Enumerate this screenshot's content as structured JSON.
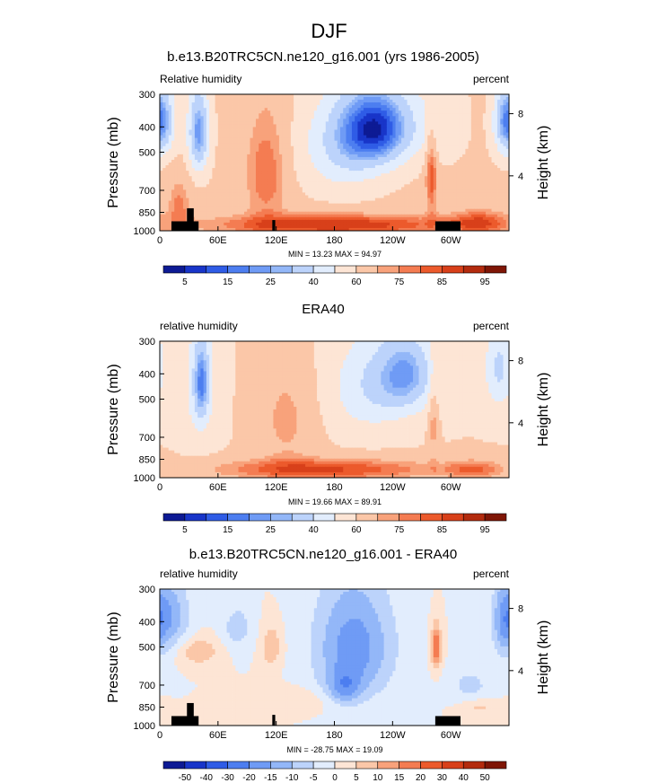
{
  "figure": {
    "season": "DJF"
  },
  "colors": {
    "blues": [
      "#0d1a94",
      "#1835c9",
      "#2f5ce6",
      "#4d7ef0",
      "#6f9bf5",
      "#93b7f8",
      "#bcd3fb",
      "#e2edfd"
    ],
    "reds": [
      "#fde5d5",
      "#fbc7a8",
      "#f8a27b",
      "#f47c52",
      "#ec5a2c",
      "#d8401a",
      "#b32b0e",
      "#7f1606"
    ],
    "land": "#000000"
  },
  "chart_data": [
    {
      "type": "heatmap",
      "title": "b.e13.B20TRC5CN.ne120_g16.001 (yrs 1986-2005)",
      "left_label": "Relative humidity",
      "right_label": "percent",
      "ylabel": "Pressure (mb)",
      "ylabel_right": "Height (km)",
      "y_ticks": [
        "300",
        "400",
        "500",
        "700",
        "850",
        "1000"
      ],
      "y_tick_values": [
        300,
        400,
        500,
        700,
        850,
        1000
      ],
      "right_ticks": [
        "8",
        "4"
      ],
      "right_tick_values": [
        356,
        616
      ],
      "x_ticks": [
        "0",
        "60E",
        "120E",
        "180",
        "120W",
        "60W"
      ],
      "x_tick_values": [
        0,
        60,
        120,
        180,
        240,
        300
      ],
      "xlim": [
        0,
        360
      ],
      "ylim": [
        1000,
        300
      ],
      "stats": "MIN =  13.23   MAX =  94.97",
      "colorbar_labels": [
        "5",
        "15",
        "25",
        "40",
        "60",
        "75",
        "85",
        "95"
      ],
      "colorbar_levels": [
        5,
        10,
        15,
        20,
        25,
        30,
        40,
        50,
        60,
        70,
        75,
        80,
        85,
        90,
        95
      ],
      "field": {
        "kind": "abs",
        "base": 62,
        "features": [
          {
            "lon": 225,
            "p": 400,
            "dlon": 38,
            "dp": 140,
            "amp": -48
          },
          {
            "lon": 190,
            "p": 480,
            "dlon": 45,
            "dp": 210,
            "amp": -22
          },
          {
            "lon": 40,
            "p": 420,
            "dlon": 11,
            "dp": 160,
            "amp": -40
          },
          {
            "lon": 355,
            "p": 380,
            "dlon": 12,
            "dp": 120,
            "amp": -30
          },
          {
            "lon": 5,
            "p": 380,
            "dlon": 12,
            "dp": 120,
            "amp": -25
          },
          {
            "lon": 110,
            "p": 600,
            "dlon": 22,
            "dp": 300,
            "amp": 18
          },
          {
            "lon": 280,
            "p": 600,
            "dlon": 6,
            "dp": 250,
            "amp": 22
          },
          {
            "lon": 290,
            "p": 380,
            "dlon": 25,
            "dp": 140,
            "amp": -10
          },
          {
            "lon": 180,
            "p": 950,
            "dlon": 130,
            "dp": 90,
            "amp": 28
          },
          {
            "lon": 330,
            "p": 930,
            "dlon": 30,
            "dp": 100,
            "amp": 20
          },
          {
            "lon": 20,
            "p": 800,
            "dlon": 12,
            "dp": 180,
            "amp": 15
          }
        ]
      },
      "land": [
        {
          "lon0": 12,
          "lon1": 40,
          "p": 920
        },
        {
          "lon0": 28,
          "lon1": 35,
          "p": 820
        },
        {
          "lon0": 116,
          "lon1": 119,
          "p": 910
        },
        {
          "lon0": 284,
          "lon1": 310,
          "p": 920
        }
      ]
    },
    {
      "type": "heatmap",
      "title": "ERA40",
      "left_label": "relative humidity",
      "right_label": "percent",
      "ylabel": "Pressure (mb)",
      "ylabel_right": "Height (km)",
      "y_ticks": [
        "300",
        "400",
        "500",
        "700",
        "850",
        "1000"
      ],
      "y_tick_values": [
        300,
        400,
        500,
        700,
        850,
        1000
      ],
      "right_ticks": [
        "8",
        "4"
      ],
      "right_tick_values": [
        356,
        616
      ],
      "x_ticks": [
        "0",
        "60E",
        "120E",
        "180",
        "120W",
        "60W"
      ],
      "x_tick_values": [
        0,
        60,
        120,
        180,
        240,
        300
      ],
      "xlim": [
        0,
        360
      ],
      "ylim": [
        1000,
        300
      ],
      "stats": "MIN =  19.66   MAX =  89.91",
      "colorbar_labels": [
        "5",
        "15",
        "25",
        "40",
        "60",
        "75",
        "85",
        "95"
      ],
      "colorbar_levels": [
        5,
        10,
        15,
        20,
        25,
        30,
        40,
        50,
        60,
        70,
        75,
        80,
        85,
        90,
        95
      ],
      "field": {
        "kind": "abs",
        "base": 60,
        "features": [
          {
            "lon": 255,
            "p": 400,
            "dlon": 30,
            "dp": 140,
            "amp": -32
          },
          {
            "lon": 215,
            "p": 450,
            "dlon": 40,
            "dp": 200,
            "amp": -18
          },
          {
            "lon": 43,
            "p": 430,
            "dlon": 8,
            "dp": 150,
            "amp": -32
          },
          {
            "lon": 40,
            "p": 450,
            "dlon": 20,
            "dp": 300,
            "amp": -12
          },
          {
            "lon": 350,
            "p": 380,
            "dlon": 15,
            "dp": 150,
            "amp": -22
          },
          {
            "lon": 130,
            "p": 600,
            "dlon": 30,
            "dp": 300,
            "amp": 12
          },
          {
            "lon": 282,
            "p": 600,
            "dlon": 5,
            "dp": 250,
            "amp": 14
          },
          {
            "lon": 170,
            "p": 930,
            "dlon": 120,
            "dp": 90,
            "amp": 26
          },
          {
            "lon": 325,
            "p": 930,
            "dlon": 30,
            "dp": 80,
            "amp": 18
          }
        ]
      },
      "land": []
    },
    {
      "type": "heatmap",
      "title": "b.e13.B20TRC5CN.ne120_g16.001 - ERA40",
      "left_label": "relative humidity",
      "right_label": "percent",
      "ylabel": "Pressure (mb)",
      "ylabel_right": "Height (km)",
      "y_ticks": [
        "300",
        "400",
        "500",
        "700",
        "850",
        "1000"
      ],
      "y_tick_values": [
        300,
        400,
        500,
        700,
        850,
        1000
      ],
      "right_ticks": [
        "8",
        "4"
      ],
      "right_tick_values": [
        356,
        616
      ],
      "x_ticks": [
        "0",
        "60E",
        "120E",
        "180",
        "120W",
        "60W"
      ],
      "x_tick_values": [
        0,
        60,
        120,
        180,
        240,
        300
      ],
      "xlim": [
        0,
        360
      ],
      "ylim": [
        1000,
        300
      ],
      "stats": "MIN = -28.75   MAX =  19.09",
      "colorbar_labels": [
        "-50",
        "-40",
        "-30",
        "-20",
        "-15",
        "-10",
        "-5",
        "0",
        "5",
        "10",
        "15",
        "20",
        "30",
        "40",
        "50"
      ],
      "colorbar_levels": [
        -50,
        -40,
        -30,
        -20,
        -15,
        -10,
        -5,
        0,
        5,
        10,
        15,
        20,
        30,
        40,
        50
      ],
      "field": {
        "kind": "diff",
        "base": 0,
        "features": [
          {
            "lon": 200,
            "p": 500,
            "dlon": 40,
            "dp": 260,
            "amp": -18
          },
          {
            "lon": 190,
            "p": 720,
            "dlon": 18,
            "dp": 110,
            "amp": -12
          },
          {
            "lon": 10,
            "p": 380,
            "dlon": 20,
            "dp": 120,
            "amp": -14
          },
          {
            "lon": 355,
            "p": 400,
            "dlon": 12,
            "dp": 140,
            "amp": -12
          },
          {
            "lon": 40,
            "p": 520,
            "dlon": 20,
            "dp": 60,
            "amp": 10
          },
          {
            "lon": 115,
            "p": 500,
            "dlon": 10,
            "dp": 90,
            "amp": 10
          },
          {
            "lon": 285,
            "p": 500,
            "dlon": 5,
            "dp": 90,
            "amp": 22
          },
          {
            "lon": 330,
            "p": 850,
            "dlon": 18,
            "dp": 60,
            "amp": 6
          },
          {
            "lon": 150,
            "p": 800,
            "dlon": 40,
            "dp": 90,
            "amp": 4
          },
          {
            "lon": 80,
            "p": 420,
            "dlon": 15,
            "dp": 80,
            "amp": -8
          },
          {
            "lon": 320,
            "p": 700,
            "dlon": 20,
            "dp": 100,
            "amp": -7
          }
        ]
      },
      "land": [
        {
          "lon0": 12,
          "lon1": 40,
          "p": 920
        },
        {
          "lon0": 28,
          "lon1": 35,
          "p": 820
        },
        {
          "lon0": 116,
          "lon1": 119,
          "p": 910
        },
        {
          "lon0": 284,
          "lon1": 310,
          "p": 920
        }
      ]
    }
  ]
}
